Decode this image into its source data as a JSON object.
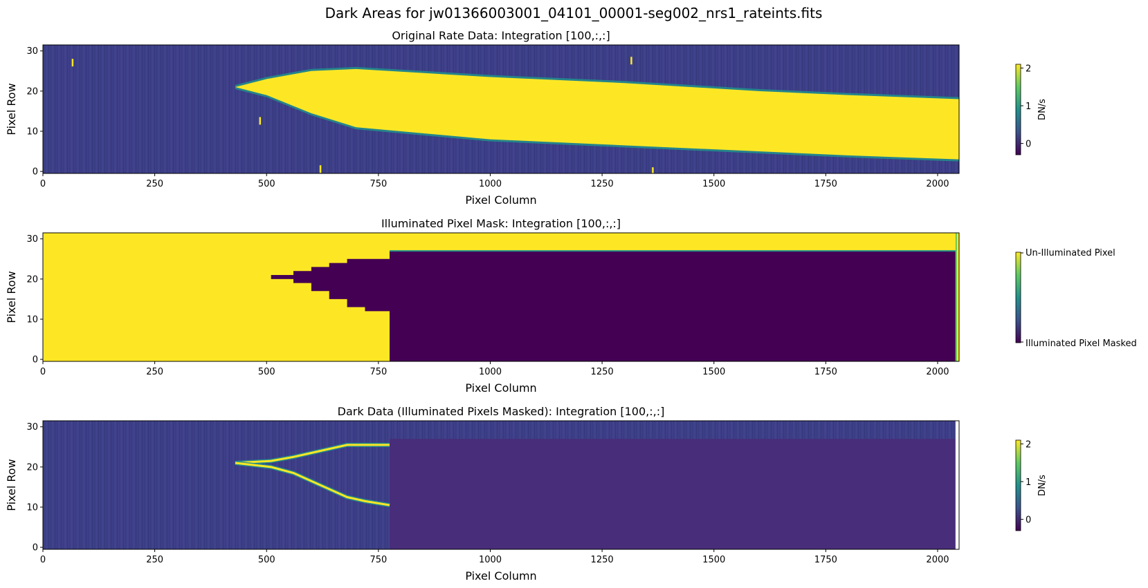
{
  "figure": {
    "suptitle": "Dark Areas for jw01366003001_04101_00001-seg002_nrs1_rateints.fits"
  },
  "colors": {
    "viridis_low": "#440154",
    "viridis_mid": "#21918c",
    "viridis_high": "#fde725",
    "masked_fill": "#482d7a",
    "background_noise": "#3e3f88"
  },
  "chart_data": [
    {
      "type": "heatmap",
      "title": "Original Rate Data: Integration [100,:,:]",
      "xlabel": "Pixel Column",
      "ylabel": "Pixel Row",
      "xlim": [
        0,
        2048
      ],
      "ylim": [
        0,
        32
      ],
      "xticks": [
        "0",
        "250",
        "500",
        "750",
        "1000",
        "1250",
        "1500",
        "1750",
        "2000"
      ],
      "yticks": [
        "0",
        "10",
        "20",
        "30"
      ],
      "colorbar": {
        "label": "DN/s",
        "ticks": [
          "0",
          "1",
          "2"
        ],
        "range": [
          -0.3,
          2.1
        ]
      },
      "illuminated_trace_upper_edge": [
        [
          430,
          21.5
        ],
        [
          500,
          23.5
        ],
        [
          600,
          25.5
        ],
        [
          700,
          26.0
        ],
        [
          1000,
          24.0
        ],
        [
          1300,
          22.5
        ],
        [
          1600,
          20.5
        ],
        [
          1800,
          19.5
        ],
        [
          2048,
          18.5
        ]
      ],
      "illuminated_trace_lower_edge": [
        [
          430,
          21.5
        ],
        [
          500,
          19.5
        ],
        [
          600,
          15.0
        ],
        [
          700,
          11.5
        ],
        [
          1000,
          8.5
        ],
        [
          1300,
          7.0
        ],
        [
          1600,
          5.5
        ],
        [
          1800,
          4.5
        ],
        [
          2048,
          3.5
        ]
      ],
      "hot_pixels": [
        [
          66,
          27.5
        ],
        [
          1315,
          28.0
        ],
        [
          485,
          13.0
        ],
        [
          620,
          1.0
        ],
        [
          1363,
          0.5
        ]
      ]
    },
    {
      "type": "heatmap",
      "title": "Illuminated Pixel Mask: Integration [100,:,:]",
      "xlabel": "Pixel Column",
      "ylabel": "Pixel Row",
      "xlim": [
        0,
        2048
      ],
      "ylim": [
        0,
        32
      ],
      "xticks": [
        "0",
        "250",
        "500",
        "750",
        "1000",
        "1250",
        "1500",
        "1750",
        "2000"
      ],
      "yticks": [
        "0",
        "10",
        "20",
        "30"
      ],
      "colorbar": {
        "top_label": "Un-Illuminated Pixel",
        "bottom_label": "Illuminated Pixel Masked"
      },
      "masked_region_steps": [
        [
          510,
          21.5,
          20.5
        ],
        [
          560,
          22.5,
          19.5
        ],
        [
          600,
          23.5,
          17.5
        ],
        [
          640,
          24.5,
          15.5
        ],
        [
          680,
          25.5,
          13.5
        ],
        [
          720,
          25.5,
          12.5
        ],
        [
          775,
          27.5,
          11.5
        ]
      ],
      "masked_block": {
        "x_start": 775,
        "x_end": 2040,
        "y_start": 0,
        "y_end": 27.5
      }
    },
    {
      "type": "heatmap",
      "title": "Dark Data (Illuminated Pixels Masked): Integration [100,:,:]",
      "xlabel": "Pixel Column",
      "ylabel": "Pixel Row",
      "xlim": [
        0,
        2048
      ],
      "ylim": [
        0,
        32
      ],
      "xticks": [
        "0",
        "250",
        "500",
        "750",
        "1000",
        "1250",
        "1500",
        "1750",
        "2000"
      ],
      "yticks": [
        "0",
        "10",
        "20",
        "30"
      ],
      "colorbar": {
        "label": "DN/s",
        "ticks": [
          "0",
          "1",
          "2"
        ],
        "range": [
          -0.3,
          2.1
        ]
      },
      "residual_edge_upper": [
        [
          430,
          21.5
        ],
        [
          510,
          22.0
        ],
        [
          560,
          23.0
        ],
        [
          600,
          24.0
        ],
        [
          640,
          25.0
        ],
        [
          680,
          26.0
        ],
        [
          775,
          26.0
        ]
      ],
      "residual_edge_lower": [
        [
          430,
          21.5
        ],
        [
          510,
          20.5
        ],
        [
          560,
          19.0
        ],
        [
          600,
          17.0
        ],
        [
          640,
          15.0
        ],
        [
          680,
          13.0
        ],
        [
          720,
          12.0
        ],
        [
          775,
          11.0
        ]
      ]
    }
  ]
}
